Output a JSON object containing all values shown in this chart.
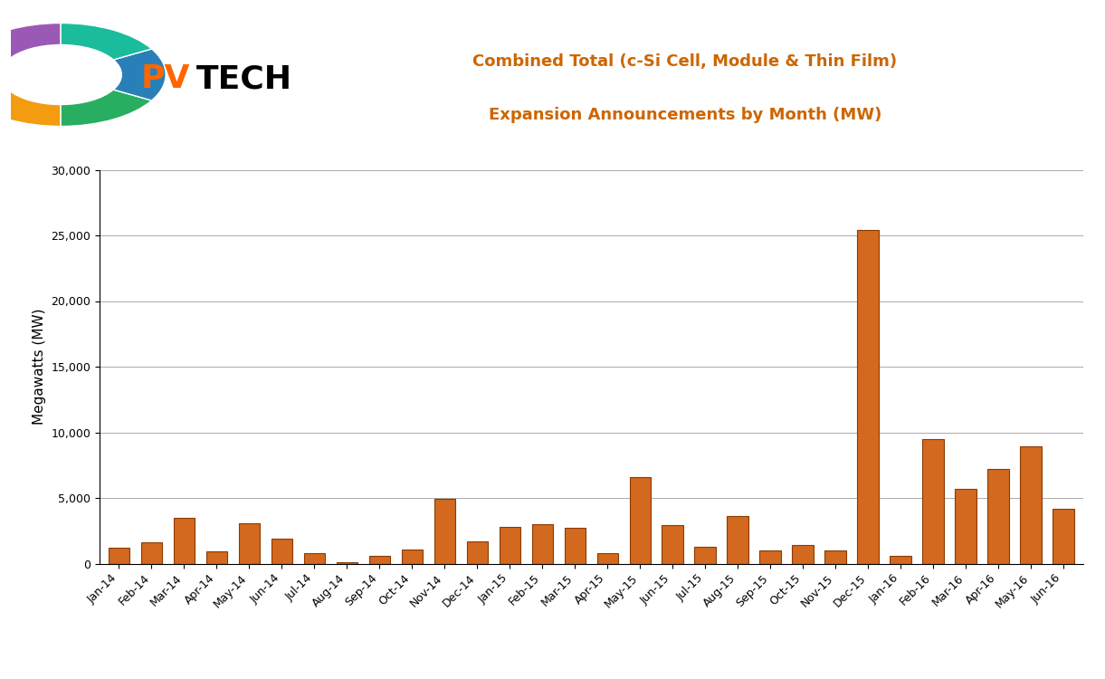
{
  "categories": [
    "Jan-14",
    "Feb-14",
    "Mar-14",
    "Apr-14",
    "May-14",
    "Jun-14",
    "Jul-14",
    "Aug-14",
    "Sep-14",
    "Oct-14",
    "Nov-14",
    "Dec-14",
    "Jan-15",
    "Feb-15",
    "Mar-15",
    "Apr-15",
    "May-15",
    "Jun-15",
    "Jul-15",
    "Aug-15",
    "Sep-15",
    "Oct-15",
    "Nov-15",
    "Dec-15",
    "Jan-16",
    "Feb-16",
    "Mar-16",
    "Apr-16",
    "May-16",
    "Jun-16"
  ],
  "values": [
    1200,
    1600,
    3500,
    900,
    3050,
    1900,
    800,
    100,
    600,
    1100,
    4900,
    1700,
    2800,
    3000,
    2700,
    800,
    6600,
    2900,
    1300,
    3600,
    1000,
    1400,
    1000,
    25400,
    600,
    9500,
    5700,
    7200,
    8900,
    4200
  ],
  "bar_color": "#D2691E",
  "bar_edge_color": "#8B3A00",
  "title_line1": "Combined Total (c-Si Cell, Module & Thin Film)",
  "title_line2": "Expansion Announcements by Month (MW)",
  "ylabel": "Megawatts (MW)",
  "ylim": [
    0,
    30000
  ],
  "yticks": [
    0,
    5000,
    10000,
    15000,
    20000,
    25000,
    30000
  ],
  "background_color": "#FFFFFF",
  "grid_color": "#888888",
  "title_color": "#CC6600",
  "pv_color": "#FF6600",
  "tech_color": "#000000"
}
